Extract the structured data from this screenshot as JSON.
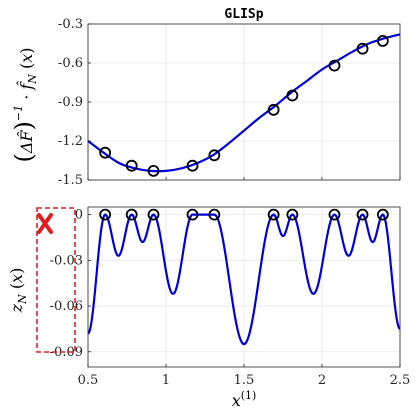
{
  "chart_data": [
    {
      "type": "line",
      "title": "GLISp",
      "ylabel": "(ΔF̂)⁻¹ · f̂_N(x)",
      "xlim": [
        0.5,
        2.5
      ],
      "ylim": [
        -1.5,
        -0.3
      ],
      "xticks": [
        0.5,
        1.0,
        1.5,
        2.0,
        2.5
      ],
      "yticks": [
        "-0.3",
        "-0.6",
        "-0.9",
        "-1.2",
        "-1.5"
      ],
      "ytick_values": [
        -0.3,
        -0.6,
        -0.9,
        -1.2,
        -1.5
      ],
      "grid": true,
      "series": [
        {
          "curve": {
            "x": [
              0.5,
              0.6,
              0.7,
              0.8,
              0.9,
              1.0,
              1.1,
              1.2,
              1.3,
              1.4,
              1.5,
              1.6,
              1.7,
              1.8,
              1.9,
              2.0,
              2.1,
              2.2,
              2.3,
              2.4,
              2.5
            ],
            "y": [
              -1.2,
              -1.29,
              -1.37,
              -1.41,
              -1.43,
              -1.43,
              -1.41,
              -1.37,
              -1.31,
              -1.22,
              -1.12,
              -1.02,
              -0.93,
              -0.83,
              -0.74,
              -0.65,
              -0.58,
              -0.51,
              -0.45,
              -0.41,
              -0.38
            ]
          },
          "points": {
            "x": [
              0.61,
              0.78,
              0.92,
              1.17,
              1.31,
              1.69,
              1.81,
              2.08,
              2.26,
              2.39
            ],
            "y": [
              -1.29,
              -1.39,
              -1.43,
              -1.39,
              -1.31,
              -0.96,
              -0.85,
              -0.62,
              -0.49,
              -0.43
            ]
          }
        }
      ],
      "colors": {
        "line": "#0000dd",
        "marker": "#000000",
        "grid": "#e6e6e6"
      }
    },
    {
      "type": "line",
      "ylabel": "z_N(x)",
      "xlabel": "x⁽¹⁾",
      "xlim": [
        0.5,
        2.5
      ],
      "ylim": [
        -0.1,
        0.005
      ],
      "xticks": [
        "0.5",
        "1",
        "1.5",
        "2",
        "2.5"
      ],
      "xtick_values": [
        0.5,
        1.0,
        1.5,
        2.0,
        2.5
      ],
      "yticks": [
        "0",
        "-0.03",
        "-0.06",
        "-0.09"
      ],
      "ytick_values": [
        0,
        -0.03,
        -0.06,
        -0.09
      ],
      "grid": true,
      "zeros": [
        0.61,
        0.78,
        0.92,
        1.17,
        1.31,
        1.69,
        1.81,
        2.08,
        2.26,
        2.39
      ],
      "valleys": {
        "x": [
          0.5,
          0.695,
          0.85,
          1.045,
          1.5,
          1.75,
          1.945,
          2.17,
          2.325,
          2.5
        ],
        "y": [
          -0.078,
          -0.027,
          -0.018,
          -0.052,
          -0.085,
          -0.014,
          -0.052,
          -0.027,
          -0.018,
          -0.075
        ]
      },
      "points": {
        "x": [
          0.61,
          0.78,
          0.92,
          1.17,
          1.31,
          1.69,
          1.81,
          2.08,
          2.26,
          2.39
        ],
        "y": [
          0,
          0,
          0,
          0,
          0,
          0,
          0,
          0,
          0,
          0
        ]
      },
      "annotation": {
        "symbol": "X",
        "color": "#e02020",
        "box": "dashed"
      },
      "colors": {
        "line": "#0000dd",
        "marker": "#000000",
        "grid": "#e6e6e6"
      }
    }
  ]
}
